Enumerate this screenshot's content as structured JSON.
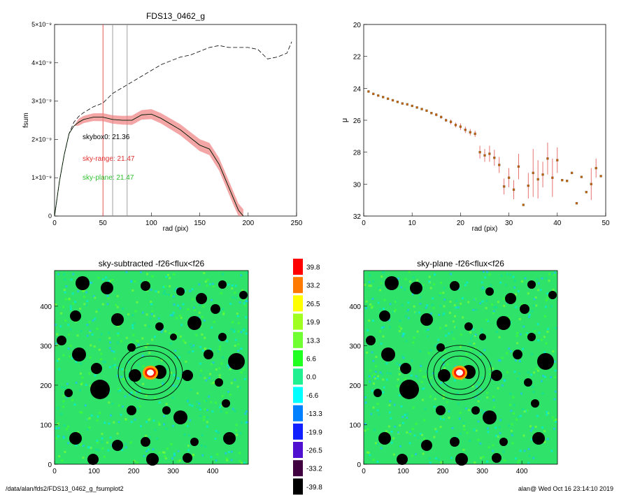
{
  "colors": {
    "model": "#000000",
    "error_band": "#f08080",
    "range_line": "#e03030",
    "plane_line": "#30c030",
    "mu_point": "#c06000",
    "mu_err": "#e05050",
    "blob": "#000000"
  },
  "footer": {
    "path": "/data/alan/fds2/FDS13_0462_g_fsumplot2",
    "stamp": "alan@  Wed Oct 16 23:14:10 2019"
  },
  "chart_data": [
    {
      "type": "line",
      "title": "FDS13_0462_g",
      "xlabel": "rad (pix)",
      "ylabel": "fsum",
      "xlim": [
        0,
        250
      ],
      "ylim": [
        0,
        5e-09
      ],
      "xticks": [
        "0",
        "50",
        "100",
        "150",
        "200",
        "250"
      ],
      "yticks": [
        "0",
        "1×10⁻⁹",
        "2×10⁻⁹",
        "3×10⁻⁹",
        "4×10⁻⁹",
        "5×10⁻⁹"
      ],
      "vlines": [
        50,
        60,
        75
      ],
      "annotations": [
        "skybox0: 21.36",
        "sky-range: 21.47",
        "sky-plane: 21.47"
      ],
      "series": [
        {
          "x": [
            0,
            5,
            10,
            15,
            20,
            25,
            30,
            40,
            50,
            60,
            70,
            80,
            90,
            100,
            110,
            120,
            130,
            140,
            150,
            160,
            170,
            175,
            180,
            185,
            190,
            195
          ],
          "values": [
            0,
            9e-10,
            1.6e-09,
            2.15e-09,
            2.35e-09,
            2.45e-09,
            2.52e-09,
            2.58e-09,
            2.58e-09,
            2.52e-09,
            2.5e-09,
            2.5e-09,
            2.64e-09,
            2.66e-09,
            2.55e-09,
            2.4e-09,
            2.25e-09,
            2.05e-09,
            1.85e-09,
            1.75e-09,
            1.35e-09,
            1.05e-09,
            7.5e-10,
            4.5e-10,
            1.5e-10,
            0
          ]
        },
        {
          "x": [
            0,
            5,
            10,
            15,
            20,
            25,
            30,
            40,
            50,
            60,
            70,
            80,
            90,
            100,
            110,
            120,
            130,
            140,
            150,
            160,
            170,
            180,
            190,
            200,
            210,
            220,
            230,
            240,
            245
          ],
          "values": [
            0,
            9e-10,
            1.6e-09,
            2.15e-09,
            2.45e-09,
            2.6e-09,
            2.7e-09,
            2.85e-09,
            2.95e-09,
            3.2e-09,
            3.35e-09,
            3.5e-09,
            3.65e-09,
            3.8e-09,
            3.95e-09,
            4.05e-09,
            4.15e-09,
            4.2e-09,
            4.3e-09,
            4.4e-09,
            4.45e-09,
            4.4e-09,
            4.4e-09,
            4.4e-09,
            4.35e-09,
            4.1e-09,
            4.15e-09,
            4.25e-09,
            4.55e-09
          ]
        }
      ]
    },
    {
      "type": "scatter",
      "xlabel": "rad (pix)",
      "ylabel": "μ",
      "xlim": [
        0,
        50
      ],
      "ylim": [
        32,
        20
      ],
      "xticks": [
        "0",
        "10",
        "20",
        "30",
        "40",
        "50"
      ],
      "yticks": [
        "20",
        "22",
        "24",
        "26",
        "28",
        "30",
        "32"
      ],
      "series": [
        {
          "x": [
            1,
            2,
            3,
            4,
            5,
            6,
            7,
            8,
            9,
            10,
            11,
            12,
            13,
            14,
            15,
            16,
            17,
            18,
            19,
            20,
            21,
            22,
            23,
            24,
            25,
            26,
            27,
            28,
            29,
            30,
            31,
            32,
            33,
            34,
            35,
            36,
            37,
            38,
            39,
            40,
            41,
            42,
            43,
            44,
            45,
            46,
            47,
            48,
            49
          ],
          "values": [
            24.2,
            24.35,
            24.45,
            24.55,
            24.65,
            24.75,
            24.85,
            24.95,
            25.0,
            25.1,
            25.2,
            25.3,
            25.4,
            25.55,
            25.65,
            25.8,
            26.0,
            26.1,
            26.3,
            26.4,
            26.6,
            26.75,
            26.85,
            28.0,
            28.2,
            28.1,
            28.35,
            28.8,
            30.15,
            29.6,
            30.35,
            28.9,
            31.3,
            30.1,
            29.3,
            29.7,
            29.4,
            28.4,
            29.6,
            28.5,
            29.75,
            29.8,
            29.3,
            31.2,
            29.55,
            30.5,
            30.0,
            29.0,
            29.5
          ],
          "err": [
            0.05,
            0.05,
            0.05,
            0.05,
            0.05,
            0.05,
            0.05,
            0.05,
            0.05,
            0.05,
            0.05,
            0.05,
            0.05,
            0.05,
            0.1,
            0.1,
            0.1,
            0.15,
            0.15,
            0.2,
            0.2,
            0.2,
            0.2,
            0.4,
            0.4,
            0.5,
            0.5,
            0.5,
            0.5,
            0.6,
            0.6,
            0.8,
            0,
            0.8,
            1.5,
            1.2,
            0.8,
            1.0,
            1.2,
            0.8,
            0,
            0,
            0,
            0,
            0,
            0,
            1.0,
            0.6,
            0
          ]
        }
      ]
    },
    {
      "type": "heatmap",
      "title": "sky-subtracted -f26<flux<f26",
      "xlim": [
        0,
        490
      ],
      "ylim": [
        0,
        490
      ],
      "xticks": [
        "0",
        "100",
        "200",
        "300",
        "400"
      ],
      "yticks": [
        "0",
        "100",
        "200",
        "300",
        "400"
      ]
    },
    {
      "type": "heatmap",
      "title": "sky-plane -f26<flux<f26",
      "xlim": [
        0,
        490
      ],
      "ylim": [
        0,
        490
      ],
      "xticks": [
        "0",
        "100",
        "200",
        "300",
        "400"
      ],
      "yticks": [
        "0",
        "100",
        "200",
        "300",
        "400"
      ]
    },
    {
      "type": "table",
      "colorbar": [
        {
          "label": "39.8",
          "color": "#ff0000"
        },
        {
          "label": "33.2",
          "color": "#ff7a00"
        },
        {
          "label": "26.5",
          "color": "#ffff00"
        },
        {
          "label": "19.9",
          "color": "#a0ff20"
        },
        {
          "label": "13.3",
          "color": "#70ff30"
        },
        {
          "label": "6.6",
          "color": "#20ff20"
        },
        {
          "label": "0.0",
          "color": "#20f090"
        },
        {
          "label": "-6.6",
          "color": "#00ffff"
        },
        {
          "label": "-13.3",
          "color": "#0080ff"
        },
        {
          "label": "-19.9",
          "color": "#1020ff"
        },
        {
          "label": "-26.5",
          "color": "#5010d0"
        },
        {
          "label": "-33.2",
          "color": "#400040"
        },
        {
          "label": "-39.8",
          "color": "#000000"
        }
      ]
    }
  ]
}
